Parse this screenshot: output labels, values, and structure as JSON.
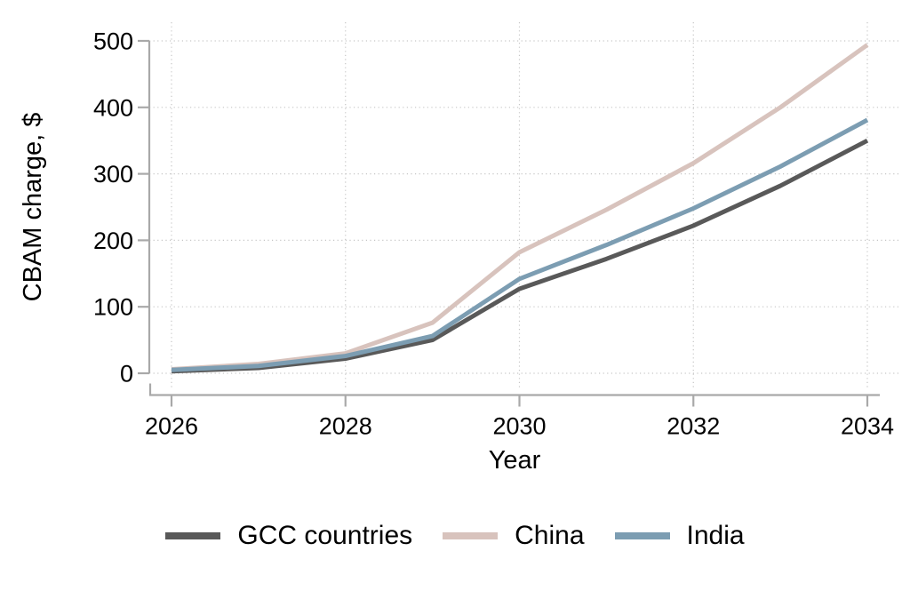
{
  "chart_data": {
    "type": "line",
    "title": "",
    "ylabel": "CBAM charge, $",
    "xlabel": "Year",
    "x": [
      2026,
      2027,
      2028,
      2029,
      2030,
      2031,
      2032,
      2033,
      2034
    ],
    "series": [
      {
        "name": "GCC countries",
        "color": "#595959",
        "values": [
          3,
          8,
          22,
          50,
          127,
          172,
          222,
          282,
          350
        ]
      },
      {
        "name": "China",
        "color": "#d8c3bd",
        "values": [
          6,
          14,
          30,
          76,
          182,
          246,
          316,
          400,
          494
        ]
      },
      {
        "name": "India",
        "color": "#7c9db2",
        "values": [
          5,
          11,
          26,
          56,
          142,
          193,
          248,
          311,
          381
        ]
      }
    ],
    "xticks": [
      2026,
      2028,
      2030,
      2032,
      2034
    ],
    "yticks": [
      0,
      100,
      200,
      300,
      400,
      500
    ],
    "xlim": [
      2026,
      2034
    ],
    "ylim": [
      0,
      500
    ],
    "grid": "dotted-both",
    "legend_position": "bottom",
    "colors": {
      "axis": "#a9a9a9",
      "grid": "#c6c6c6",
      "text": "#000000"
    },
    "line_width": 5
  }
}
